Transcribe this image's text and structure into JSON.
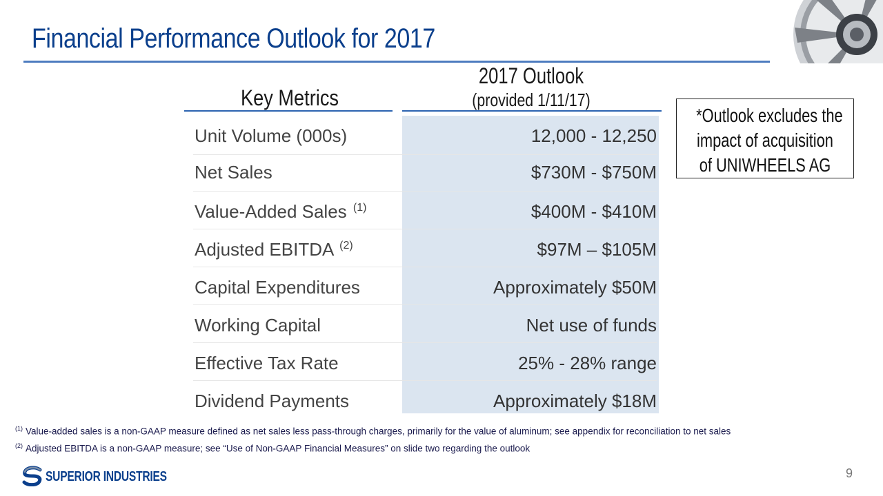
{
  "slide": {
    "title": "Financial Performance Outlook for 2017",
    "page_number": "9"
  },
  "table": {
    "col_metrics": "Key Metrics",
    "col_outlook": "2017 Outlook",
    "col_outlook_sub": "(provided 1/11/17)",
    "rows": [
      {
        "label": "Unit Volume (000s)",
        "note": "",
        "value": "12,000 - 12,250"
      },
      {
        "label": "Net Sales",
        "note": "",
        "value": "$730M - $750M"
      },
      {
        "label": "Value-Added Sales",
        "note": "(1)",
        "value": "$400M - $410M"
      },
      {
        "label": "Adjusted EBITDA",
        "note": "(2)",
        "value": "$97M – $105M"
      },
      {
        "label": "Capital Expenditures",
        "note": "",
        "value": "Approximately $50M"
      },
      {
        "label": "Working Capital",
        "note": "",
        "value": "Net use of funds"
      },
      {
        "label": "Effective Tax Rate",
        "note": "",
        "value": "25% - 28% range"
      },
      {
        "label": "Dividend Payments",
        "note": "",
        "value": "Approximately $18M"
      }
    ]
  },
  "callout": {
    "line1": "*Outlook excludes the",
    "line2": "impact of acquisition",
    "line3": "of UNIWHEELS AG"
  },
  "footnotes": [
    {
      "mark": "(1)",
      "text": "Value-added sales is a non-GAAP measure defined as net sales less pass-through charges, primarily for the value of aluminum; see appendix for reconciliation to net sales"
    },
    {
      "mark": "(2)",
      "text": "Adjusted EBITDA is a non-GAAP measure; see “Use of Non-GAAP Financial Measures” on slide two regarding the outlook"
    }
  ],
  "footer": {
    "company": "SUPERIOR INDUSTRIES",
    "logo_icon": "superior-s-logo-icon"
  },
  "colors": {
    "title_blue": "#0b3f8c",
    "rule_blue": "#4d7cbf",
    "shade": "#dbe5f0"
  }
}
